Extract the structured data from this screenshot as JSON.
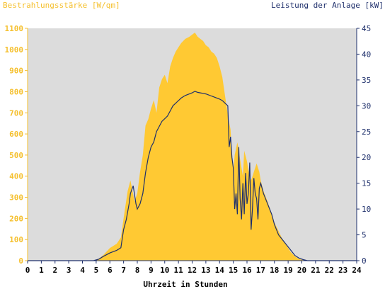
{
  "chart_data": {
    "type": "area",
    "title": "",
    "ylabel_left": "Bestrahlungsstärke [W/qm]",
    "ylabel_right": "Leistung der Anlage [kW]",
    "xlabel": "Uhrzeit in Stunden",
    "xlim": [
      0,
      24
    ],
    "ylim_left": [
      0,
      1100
    ],
    "ylim_right": [
      0,
      45
    ],
    "x_ticks": [
      "0",
      "1",
      "2",
      "3",
      "4",
      "5",
      "6",
      "7",
      "8",
      "9",
      "10",
      "11",
      "12",
      "13",
      "14",
      "15",
      "16",
      "17",
      "18",
      "19",
      "20",
      "21",
      "22",
      "23",
      "24"
    ],
    "y_ticks_left": [
      "0",
      "100",
      "200",
      "300",
      "400",
      "500",
      "600",
      "700",
      "800",
      "900",
      "1000",
      "1100"
    ],
    "y_ticks_right": [
      "0",
      "5",
      "10",
      "15",
      "20",
      "25",
      "30",
      "35",
      "40",
      "45"
    ],
    "grid": false,
    "background_color": "#dcdcdc",
    "series": [
      {
        "axis": "left",
        "kind": "area",
        "color": "#ffc933",
        "x": [
          0,
          4.8,
          5.2,
          5.5,
          6,
          6.5,
          6.8,
          7,
          7.3,
          7.5,
          7.8,
          8,
          8.2,
          8.4,
          8.6,
          8.8,
          9,
          9.2,
          9.4,
          9.6,
          9.8,
          10,
          10.2,
          10.4,
          10.6,
          10.8,
          11,
          11.2,
          11.5,
          11.8,
          12,
          12.2,
          12.4,
          12.6,
          12.8,
          13,
          13.2,
          13.4,
          13.6,
          13.8,
          14,
          14.2,
          14.4,
          14.6,
          14.8,
          14.9,
          15,
          15.1,
          15.3,
          15.5,
          15.7,
          15.8,
          16,
          16.1,
          16.3,
          16.5,
          16.7,
          16.9,
          17,
          17.2,
          17.5,
          17.8,
          18,
          18.3,
          18.6,
          18.9,
          19.2,
          19.5,
          19.8,
          20.1,
          20.4,
          24
        ],
        "values": [
          0,
          0,
          10,
          25,
          60,
          80,
          110,
          200,
          330,
          380,
          280,
          320,
          420,
          500,
          640,
          670,
          720,
          760,
          700,
          820,
          860,
          880,
          840,
          920,
          960,
          990,
          1010,
          1030,
          1050,
          1060,
          1070,
          1080,
          1060,
          1050,
          1040,
          1020,
          1010,
          990,
          980,
          960,
          920,
          870,
          780,
          690,
          620,
          500,
          420,
          500,
          560,
          480,
          400,
          520,
          470,
          430,
          380,
          420,
          460,
          420,
          380,
          330,
          280,
          220,
          180,
          140,
          100,
          70,
          40,
          20,
          8,
          2,
          0,
          0
        ]
      },
      {
        "axis": "right",
        "kind": "line",
        "color": "#1e2f6b",
        "x": [
          0,
          4.8,
          5.2,
          5.5,
          6,
          6.5,
          6.8,
          7,
          7.2,
          7.4,
          7.5,
          7.7,
          7.9,
          8,
          8.2,
          8.4,
          8.6,
          8.8,
          9,
          9.2,
          9.4,
          9.6,
          9.8,
          10,
          10.2,
          10.4,
          10.6,
          10.8,
          11,
          11.2,
          11.5,
          11.8,
          12,
          12.2,
          12.4,
          12.6,
          12.8,
          13,
          13.2,
          13.4,
          13.6,
          13.8,
          14,
          14.2,
          14.4,
          14.6,
          14.7,
          14.8,
          14.9,
          15,
          15.1,
          15.2,
          15.3,
          15.4,
          15.5,
          15.6,
          15.7,
          15.8,
          15.9,
          16,
          16.1,
          16.2,
          16.3,
          16.4,
          16.5,
          16.6,
          16.7,
          16.8,
          16.9,
          17,
          17.2,
          17.5,
          17.8,
          18,
          18.3,
          18.6,
          18.9,
          19.2,
          19.5,
          19.8,
          20.1,
          20.4,
          24
        ],
        "values": [
          0,
          0,
          0.3,
          0.8,
          1.5,
          2,
          2.5,
          6,
          8,
          11,
          13,
          14.5,
          11,
          10,
          11,
          13,
          17,
          20,
          22,
          23,
          25,
          26,
          27,
          27.5,
          28,
          29,
          30,
          30.5,
          31,
          31.5,
          32,
          32.3,
          32.5,
          32.8,
          32.6,
          32.5,
          32.4,
          32.3,
          32.1,
          31.9,
          31.7,
          31.5,
          31.3,
          31,
          30.5,
          30,
          22,
          24,
          20,
          18,
          10,
          13,
          9,
          22,
          12,
          8,
          15,
          9,
          17,
          11,
          13,
          19,
          6,
          10,
          16,
          13,
          12,
          8,
          14,
          15,
          13,
          11,
          9,
          7,
          5,
          4,
          3,
          2,
          1,
          0.5,
          0.2,
          0,
          0
        ]
      }
    ]
  }
}
